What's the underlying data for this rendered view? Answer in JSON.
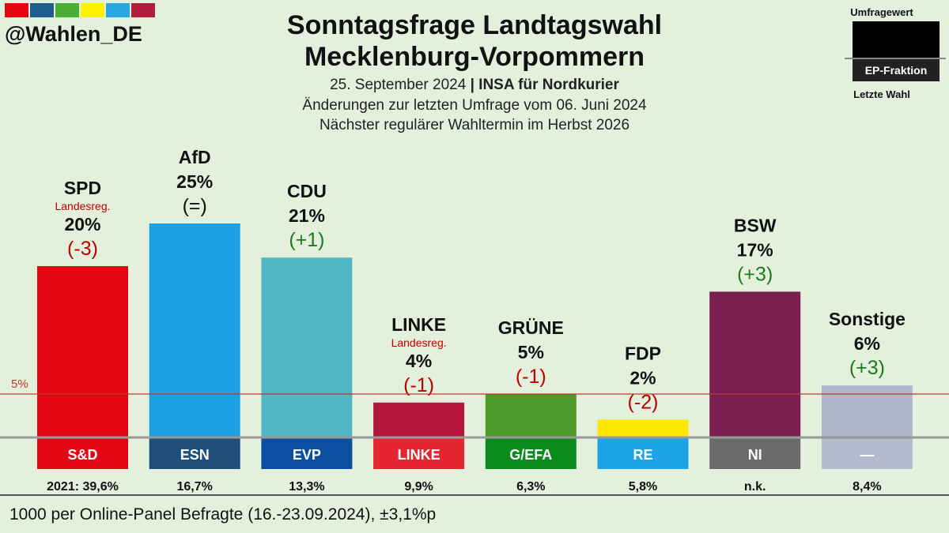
{
  "header": {
    "handle": "@Wahlen_DE",
    "brand_colors": [
      "#e30613",
      "#1d5e8a",
      "#4caf35",
      "#fff200",
      "#29a8e0",
      "#b01f3c"
    ],
    "title_line1": "Sonntagsfrage Landtagswahl",
    "title_line2": "Mecklenburg-Vorpommern",
    "date": "25. September 2024",
    "separator": "|",
    "source": "INSA für Nordkurier",
    "changes_note": "Änderungen zur letzten Umfrage vom 06. Juni 2024",
    "next_election": "Nächster regulärer Wahltermin im Herbst 2026"
  },
  "legend": {
    "poll_value": "Umfragewert",
    "ep_fraction": "EP-Fraktion",
    "last_election": "Letzte Wahl"
  },
  "footer": {
    "note": "1000 per Online-Panel Befragte (16.-23.09.2024), ±3,1%p"
  },
  "chart_data": {
    "type": "bar",
    "title": "Sonntagsfrage Landtagswahl Mecklenburg-Vorpommern",
    "ylim": [
      0,
      25
    ],
    "reference_line": {
      "value": 5,
      "label": "5%",
      "color": "#c0392b"
    },
    "categories": [
      "SPD",
      "AfD",
      "CDU",
      "LINKE",
      "GRÜNE",
      "FDP",
      "BSW",
      "Sonstige"
    ],
    "values": [
      20,
      25,
      21,
      4,
      5,
      2,
      17,
      6
    ],
    "value_labels": [
      "20%",
      "25%",
      "21%",
      "4%",
      "5%",
      "2%",
      "17%",
      "6%"
    ],
    "changes": [
      "(-3)",
      "(=)",
      "(+1)",
      "(-1)",
      "(-1)",
      "(-2)",
      "(+3)",
      "(+3)"
    ],
    "change_colors": [
      "#c00000",
      "#111111",
      "#1e7a1e",
      "#c00000",
      "#c00000",
      "#c00000",
      "#1e7a1e",
      "#1e7a1e"
    ],
    "notes": [
      "Landesreg.",
      "",
      "",
      "Landesreg.",
      "",
      "",
      "",
      ""
    ],
    "note_color": "#c00000",
    "bar_colors": [
      "#e30613",
      "#1ba0e2",
      "#52b7c4",
      "#b5173a",
      "#4e9a2a",
      "#ffe800",
      "#7a1f4f",
      "#aeb8c9"
    ],
    "ep_fractions": [
      "S&D",
      "ESN",
      "EVP",
      "LINKE",
      "G/EFA",
      "RE",
      "NI",
      "—"
    ],
    "ep_colors": [
      "#e30613",
      "#1f4e79",
      "#0c4fa0",
      "#e3262f",
      "#0b8a1e",
      "#1ca4e6",
      "#6b6b6b",
      "#b3bccc"
    ],
    "last_election": [
      "2021: 39,6%",
      "16,7%",
      "13,3%",
      "9,9%",
      "6,3%",
      "5,8%",
      "n.k.",
      "8,4%"
    ]
  }
}
